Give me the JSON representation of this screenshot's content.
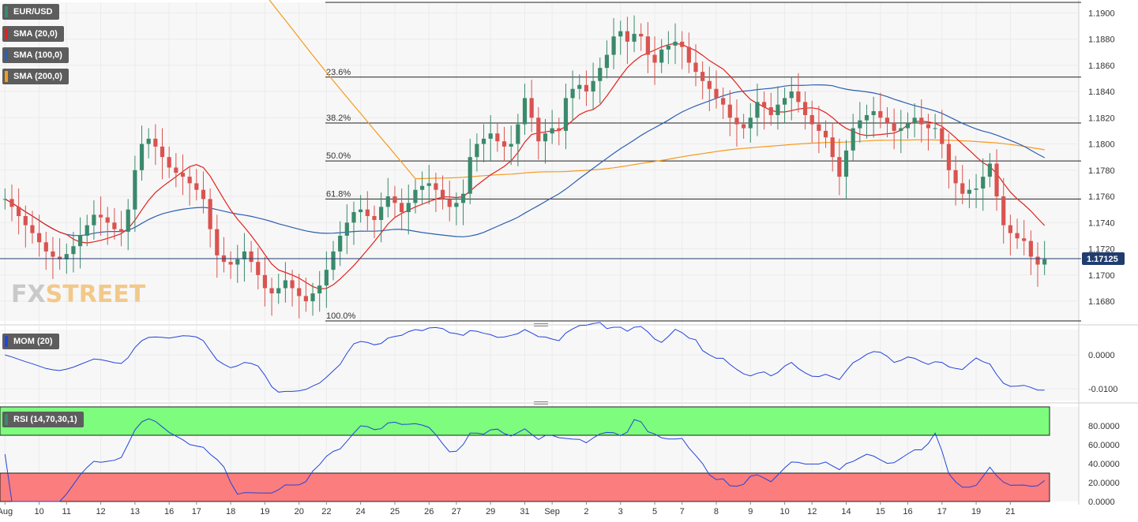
{
  "symbol": "EUR/USD",
  "indicators": {
    "sma20": "SMA (20,0)",
    "sma100": "SMA (100,0)",
    "sma200": "SMA (200,0)",
    "mom": "MOM (20)",
    "rsi": "RSI (14,70,30,1)"
  },
  "watermark": {
    "fx": "FX",
    "street": "STREET"
  },
  "current_price": "1.17125",
  "colors": {
    "up": "#3a8a6c",
    "down": "#d9534f",
    "sma20": "#e3211c",
    "sma100": "#2c5fb0",
    "sma200": "#f59a1e",
    "mom_line": "#2244dd",
    "rsi_line": "#2244dd",
    "rsi_overbought_zone": "#7dfc7d",
    "rsi_oversold_zone": "#fb7d7d",
    "price_tag": "#1f3d6e"
  },
  "chart_data": [
    {
      "type": "candlestick",
      "panel": "price",
      "ylim": [
        1.1665,
        1.1908
      ],
      "yticks": [
        "1.1900",
        "1.1880",
        "1.1860",
        "1.1840",
        "1.1820",
        "1.1800",
        "1.1780",
        "1.1760",
        "1.1740",
        "1.1720",
        "1.1700",
        "1.1680"
      ],
      "xticks": [
        "Aug",
        "10",
        "11",
        "12",
        "13",
        "16",
        "17",
        "18",
        "19",
        "20",
        "22",
        "24",
        "25",
        "26",
        "27",
        "29",
        "31",
        "Sep",
        "2",
        "3",
        "5",
        "7",
        "8",
        "9",
        "10",
        "12",
        "14",
        "15",
        "16",
        "17",
        "19",
        "21"
      ],
      "fib_levels": [
        {
          "label": "",
          "value": 1.1908
        },
        {
          "label": "23.6%",
          "value": 1.1851
        },
        {
          "label": "38.2%",
          "value": 1.1816
        },
        {
          "label": "50.0%",
          "value": 1.1787
        },
        {
          "label": "61.8%",
          "value": 1.1758
        },
        {
          "label": "100.0%",
          "value": 1.1665
        }
      ],
      "current_price": 1.17125,
      "close": [
        1.1758,
        1.1752,
        1.1745,
        1.1738,
        1.1732,
        1.1725,
        1.1718,
        1.1714,
        1.1712,
        1.1716,
        1.1722,
        1.173,
        1.1738,
        1.1746,
        1.1744,
        1.174,
        1.1735,
        1.1733,
        1.175,
        1.178,
        1.18,
        1.1804,
        1.1798,
        1.179,
        1.1782,
        1.1778,
        1.1775,
        1.177,
        1.1765,
        1.1758,
        1.1735,
        1.1715,
        1.171,
        1.1708,
        1.1712,
        1.1718,
        1.171,
        1.17,
        1.169,
        1.1686,
        1.169,
        1.1696,
        1.169,
        1.1684,
        1.168,
        1.1686,
        1.1692,
        1.1704,
        1.1718,
        1.173,
        1.174,
        1.1748,
        1.175,
        1.1745,
        1.1742,
        1.1752,
        1.176,
        1.1755,
        1.1748,
        1.1755,
        1.1765,
        1.1768,
        1.177,
        1.1765,
        1.1758,
        1.1752,
        1.1755,
        1.1762,
        1.179,
        1.18,
        1.1804,
        1.1808,
        1.1802,
        1.1798,
        1.18,
        1.1815,
        1.1835,
        1.182,
        1.1802,
        1.1808,
        1.1812,
        1.181,
        1.1835,
        1.1842,
        1.1845,
        1.184,
        1.1848,
        1.1858,
        1.1868,
        1.1882,
        1.1886,
        1.1878,
        1.1884,
        1.1882,
        1.1868,
        1.1862,
        1.1872,
        1.1875,
        1.1878,
        1.1874,
        1.1862,
        1.1855,
        1.1848,
        1.1842,
        1.1835,
        1.183,
        1.182,
        1.1815,
        1.1812,
        1.182,
        1.1832,
        1.1828,
        1.1822,
        1.183,
        1.1835,
        1.184,
        1.1832,
        1.1822,
        1.1815,
        1.181,
        1.1805,
        1.179,
        1.1775,
        1.1795,
        1.1812,
        1.1818,
        1.1822,
        1.1825,
        1.182,
        1.1816,
        1.181,
        1.1812,
        1.1816,
        1.182,
        1.1815,
        1.1812,
        1.1812,
        1.18,
        1.178,
        1.177,
        1.1762,
        1.1765,
        1.1766,
        1.1775,
        1.1785,
        1.176,
        1.1738,
        1.1732,
        1.1728,
        1.1726,
        1.1714,
        1.1708,
        1.1712
      ]
    },
    {
      "type": "line",
      "panel": "momentum",
      "name": "MOM (20)",
      "ylim": [
        -0.0135,
        0.0075
      ],
      "yticks": [
        "0.0000",
        "-0.0100"
      ]
    },
    {
      "type": "line",
      "panel": "rsi",
      "name": "RSI (14,70,30,1)",
      "ylim": [
        0,
        100
      ],
      "yticks": [
        "80.0000",
        "60.0000",
        "40.0000",
        "20.0000",
        "0.0000"
      ],
      "overbought": 70,
      "oversold": 30
    }
  ]
}
